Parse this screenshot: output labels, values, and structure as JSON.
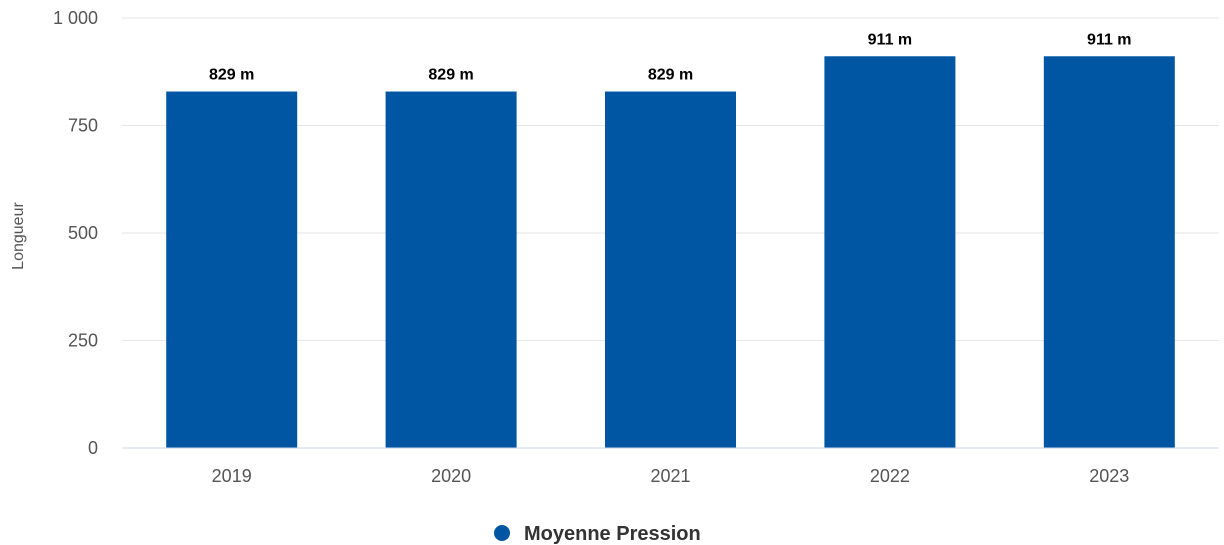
{
  "chart_data": {
    "type": "bar",
    "title": "",
    "xlabel": "",
    "ylabel": "Longueur",
    "categories": [
      "2019",
      "2020",
      "2021",
      "2022",
      "2023"
    ],
    "series": [
      {
        "name": "Moyenne Pression",
        "values": [
          829,
          829,
          829,
          911,
          911
        ],
        "data_labels": [
          "829 m",
          "829 m",
          "829 m",
          "911 m",
          "911 m"
        ],
        "color": "#0056a3"
      }
    ],
    "ylim": [
      0,
      1000
    ],
    "yticks": [
      0,
      250,
      500,
      750,
      1000
    ],
    "ytick_labels": [
      "0",
      "250",
      "500",
      "750",
      "1 000"
    ],
    "grid": true,
    "legend_position": "bottom-center",
    "colors": {
      "grid": "#e6e6e6",
      "axis_line": "#ccd6eb"
    }
  }
}
